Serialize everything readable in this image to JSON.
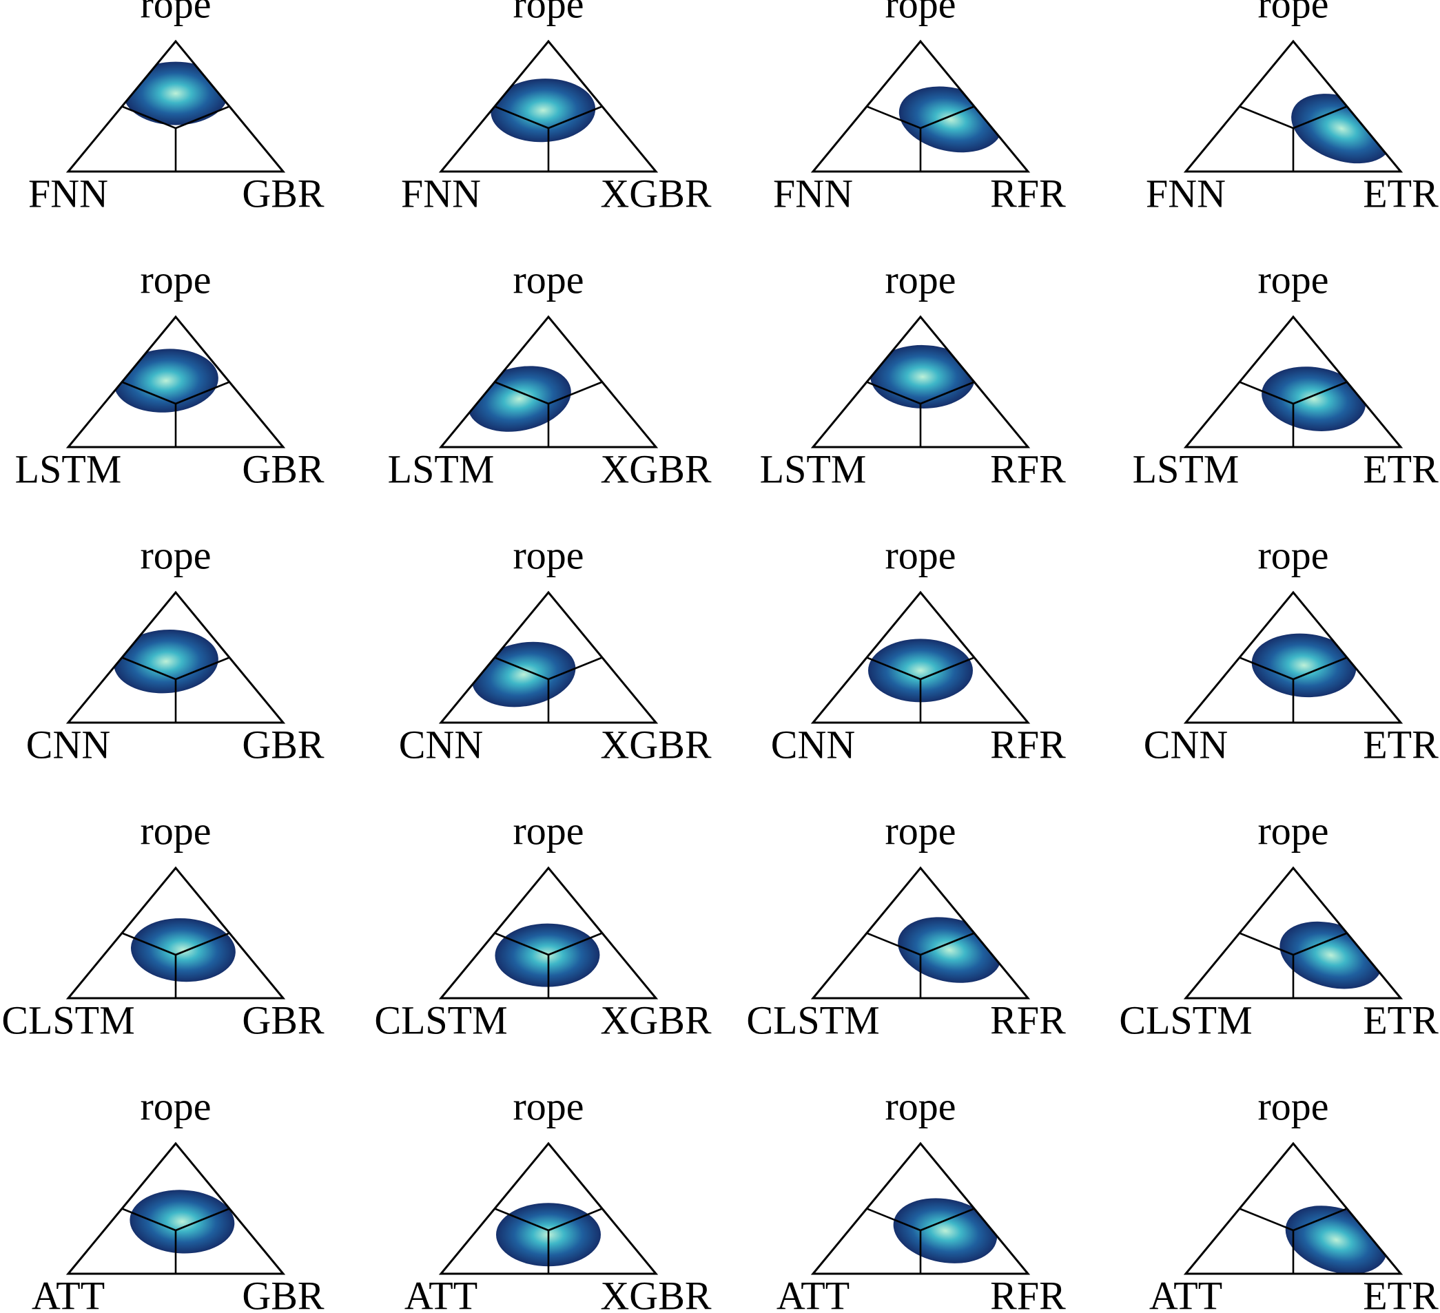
{
  "chart_data": [
    {
      "type": "ternary",
      "top": "rope",
      "left": "FNN",
      "right": "GBR",
      "center": [
        0.2,
        0.6,
        0.2
      ]
    },
    {
      "type": "ternary",
      "top": "rope",
      "left": "FNN",
      "right": "XGBR",
      "center": [
        0.29,
        0.47,
        0.24
      ]
    },
    {
      "type": "ternary",
      "top": "rope",
      "left": "FNN",
      "right": "RFR",
      "center": [
        0.16,
        0.4,
        0.44
      ]
    },
    {
      "type": "ternary",
      "top": "rope",
      "left": "FNN",
      "right": "ETR",
      "center": [
        0.11,
        0.33,
        0.56
      ]
    },
    {
      "type": "ternary",
      "top": "rope",
      "left": "LSTM",
      "right": "GBR",
      "center": [
        0.29,
        0.51,
        0.2
      ]
    },
    {
      "type": "ternary",
      "top": "rope",
      "left": "LSTM",
      "right": "XGBR",
      "center": [
        0.45,
        0.37,
        0.18
      ]
    },
    {
      "type": "ternary",
      "top": "rope",
      "left": "LSTM",
      "right": "RFR",
      "center": [
        0.22,
        0.54,
        0.24
      ]
    },
    {
      "type": "ternary",
      "top": "rope",
      "left": "LSTM",
      "right": "ETR",
      "center": [
        0.22,
        0.37,
        0.41
      ]
    },
    {
      "type": "ternary",
      "top": "rope",
      "left": "CNN",
      "right": "GBR",
      "center": [
        0.31,
        0.47,
        0.22
      ]
    },
    {
      "type": "ternary",
      "top": "rope",
      "left": "CNN",
      "right": "XGBR",
      "center": [
        0.43,
        0.37,
        0.2
      ]
    },
    {
      "type": "ternary",
      "top": "rope",
      "left": "CNN",
      "right": "RFR",
      "center": [
        0.3,
        0.4,
        0.3
      ]
    },
    {
      "type": "ternary",
      "top": "rope",
      "left": "CNN",
      "right": "ETR",
      "center": [
        0.23,
        0.44,
        0.33
      ]
    },
    {
      "type": "ternary",
      "top": "rope",
      "left": "CLSTM",
      "right": "GBR",
      "center": [
        0.28,
        0.37,
        0.35
      ]
    },
    {
      "type": "ternary",
      "top": "rope",
      "left": "CLSTM",
      "right": "XGBR",
      "center": [
        0.34,
        0.33,
        0.33
      ]
    },
    {
      "type": "ternary",
      "top": "rope",
      "left": "CLSTM",
      "right": "RFR",
      "center": [
        0.18,
        0.37,
        0.45
      ]
    },
    {
      "type": "ternary",
      "top": "rope",
      "left": "CLSTM",
      "right": "ETR",
      "center": [
        0.16,
        0.33,
        0.51
      ]
    },
    {
      "type": "ternary",
      "top": "rope",
      "left": "ATT",
      "right": "GBR",
      "center": [
        0.27,
        0.4,
        0.33
      ]
    },
    {
      "type": "ternary",
      "top": "rope",
      "left": "ATT",
      "right": "XGBR",
      "center": [
        0.35,
        0.3,
        0.35
      ]
    },
    {
      "type": "ternary",
      "top": "rope",
      "left": "ATT",
      "right": "RFR",
      "center": [
        0.22,
        0.33,
        0.45
      ]
    },
    {
      "type": "ternary",
      "top": "rope",
      "left": "ATT",
      "right": "ETR",
      "center": [
        0.17,
        0.26,
        0.57
      ]
    }
  ]
}
